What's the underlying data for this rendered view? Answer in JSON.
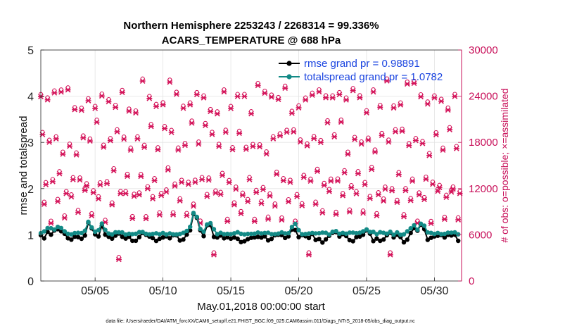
{
  "chart_data": {
    "type": "line",
    "title_line1": "Northern Hemisphere 2253243 / 2268314 = 99.336%",
    "title_line2": "ACARS_TEMPERATURE @ 688 hPa",
    "xlabel": "May.01,2018 00:00:00 start",
    "ylabel": "rmse and totalspread",
    "ylabel_right": "# of obs: o=possible; ×=assimilated",
    "footer": "data file: /Users/raeder/DAI/ATM_forcXX/CAM6_setup/f.e21.FHIST_BGC.f09_025.CAM6assim.011/Diags_NTrS_2018-05/obs_diag_output.nc",
    "xlim": [
      1.0,
      32.0
    ],
    "ylim": [
      0,
      5
    ],
    "ylim_right": [
      0,
      30000
    ],
    "x_ticks": [
      5,
      10,
      15,
      20,
      25,
      30
    ],
    "x_tick_labels": [
      "05/05",
      "05/10",
      "05/15",
      "05/20",
      "05/25",
      "05/30"
    ],
    "y_ticks": [
      0,
      1,
      2,
      3,
      4,
      5
    ],
    "y_tick_labels": [
      "0",
      "1",
      "2",
      "3",
      "4",
      "5"
    ],
    "y_ticks_right": [
      0,
      6000,
      12000,
      18000,
      24000,
      30000
    ],
    "y_tick_labels_right": [
      "0",
      "6000",
      "12000",
      "18000",
      "24000",
      "30000"
    ],
    "legend": [
      "rmse grand pr = 0.98891",
      "totalspread grand pr = 1.0782"
    ],
    "legend_position": "top-right",
    "colors": {
      "rmse": "#000000",
      "spread": "#138a86",
      "obs": "#d4145a",
      "axis_right": "#c8105a"
    },
    "obs_daily_cycle_hours": [
      0,
      3,
      6,
      9,
      12,
      15,
      18,
      21
    ],
    "obs_daily_cycle_values": [
      24000,
      18800,
      10800,
      13200,
      23800,
      18000,
      8200,
      12000
    ],
    "obs_possible_extra": 300,
    "rmse_base": 0.95,
    "spread_base": 1.03,
    "spread_minus_rmse_offset": 0.08,
    "events": [
      {
        "day": 1.6,
        "amp": 0.12,
        "width": 0.35
      },
      {
        "day": 2.3,
        "amp": 0.2,
        "width": 0.3
      },
      {
        "day": 4.6,
        "amp": 0.22,
        "width": 0.3
      },
      {
        "day": 5.5,
        "amp": 0.25,
        "width": 0.25
      },
      {
        "day": 12.3,
        "amp": 0.45,
        "width": 0.35
      },
      {
        "day": 13.4,
        "amp": 0.32,
        "width": 0.3
      },
      {
        "day": 19.7,
        "amp": 0.25,
        "width": 0.3
      },
      {
        "day": 25.0,
        "amp": 0.12,
        "width": 0.3
      },
      {
        "day": 28.4,
        "amp": 0.25,
        "width": 0.25
      },
      {
        "day": 29.1,
        "amp": 0.3,
        "width": 0.25
      }
    ]
  }
}
